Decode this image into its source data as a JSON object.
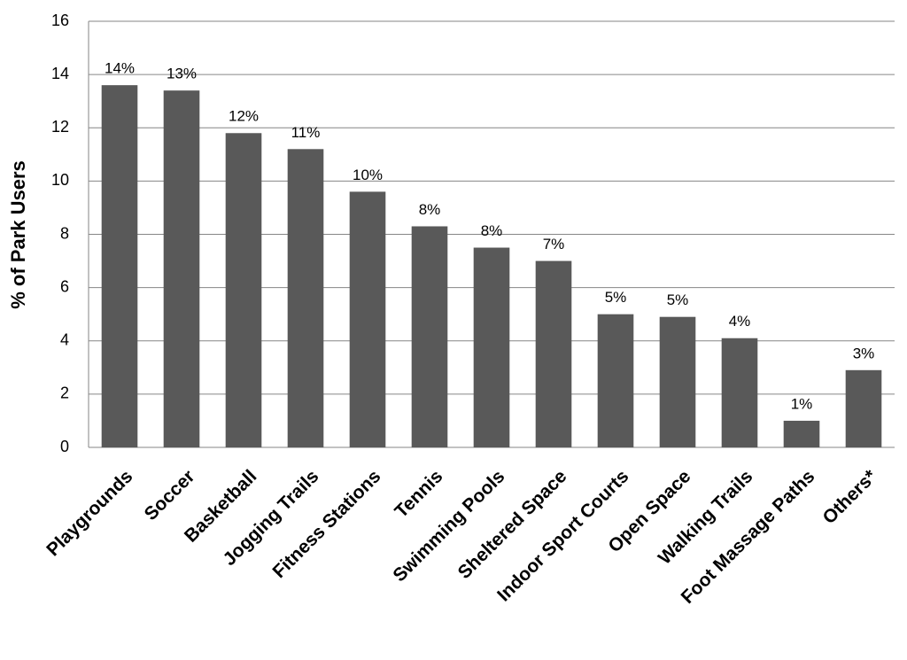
{
  "chart_data": {
    "type": "bar",
    "y_label": "% of Park Users",
    "categories": [
      "Playgrounds",
      "Soccer",
      "Basketball",
      "Jogging Trails",
      "Fitness Stations",
      "Tennis",
      "Swimming Pools",
      "Sheltered Space",
      "Indoor Sport Courts",
      "Open Space",
      "Walking Trails",
      "Foot Massage Paths",
      "Others*"
    ],
    "values": [
      13.6,
      13.4,
      11.8,
      11.2,
      9.6,
      8.3,
      7.5,
      7.0,
      5.0,
      4.9,
      4.1,
      1.0,
      2.9
    ],
    "value_labels": [
      "14%",
      "13%",
      "12%",
      "11%",
      "10%",
      "8%",
      "8%",
      "7%",
      "5%",
      "5%",
      "4%",
      "1%",
      "3%"
    ],
    "color": "#595959",
    "ylim": [
      0,
      16
    ],
    "yticks": [
      0,
      2,
      4,
      6,
      8,
      10,
      12,
      14,
      16
    ],
    "grid": true
  }
}
